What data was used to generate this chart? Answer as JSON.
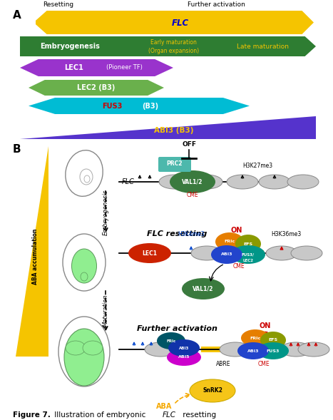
{
  "bg": "#ffffff",
  "panel_a": {
    "label": "A",
    "flc": {
      "color": "#f5c400",
      "label": "FLC",
      "label_color": "#0000cc",
      "left_note": "Resetting",
      "right_note": "Further activation"
    },
    "embryo": {
      "color": "#2e7d32",
      "label1": "Embryogenesis",
      "label2": "Early maturation",
      "label3": "(Organ expansion)",
      "label4": "Late maturation",
      "label_color1": "#ffffff",
      "label_color2": "#f5c400"
    },
    "lec1": {
      "color": "#9933cc",
      "label": "LEC1",
      "sub": "(Pioneer TF)",
      "label_color": "#ffffff"
    },
    "lec2": {
      "color": "#6ab04c",
      "label": "LEC2 (B3)",
      "label_color": "#ffffff"
    },
    "fus3": {
      "color": "#00bcd4",
      "label1": "FUS3",
      "label2": " (B3)",
      "label_color1": "#cc0000",
      "label_color2": "#ffffff"
    },
    "abi3": {
      "color": "#5533cc",
      "label": "ABI3 (B3)",
      "label_color": "#f5c400"
    }
  },
  "panel_b": {
    "aba_tri_color": "#f5c400",
    "embryo_outline": "#777777",
    "line_color": "#000000",
    "nuc_color": "#c8c8c8",
    "nuc_edge": "#888888"
  }
}
